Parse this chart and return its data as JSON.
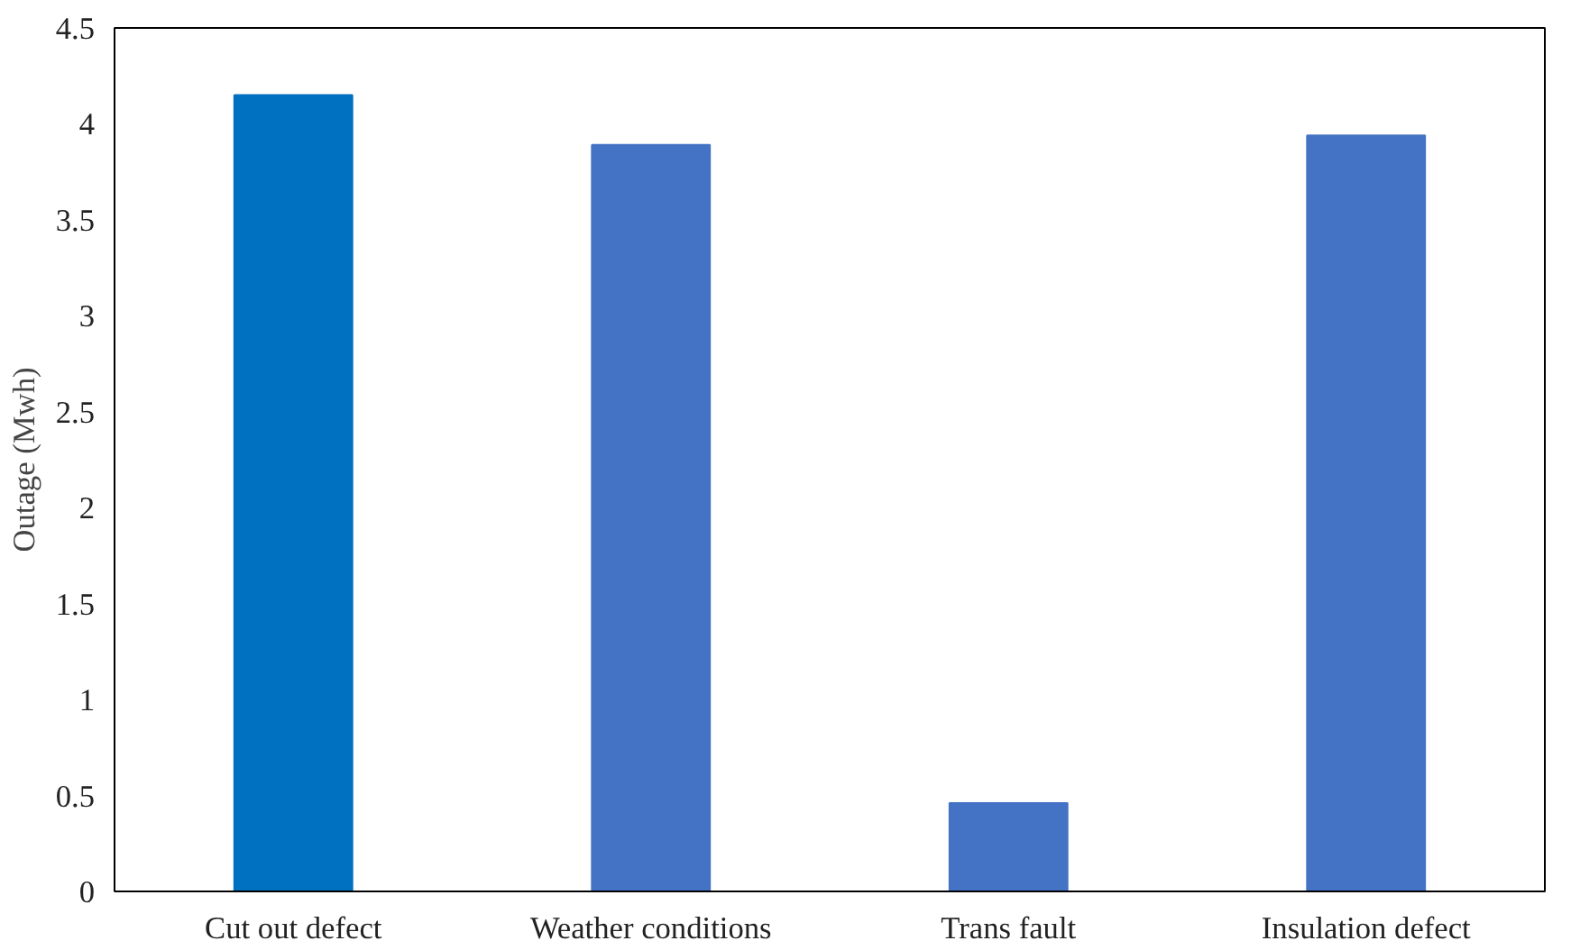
{
  "chart_data": {
    "type": "bar",
    "ylabel": "Outage (Mwh)",
    "categories": [
      "Cut out defect",
      "Weather conditions",
      "Trans fault",
      "Insulation defect"
    ],
    "values": [
      4.15,
      3.89,
      0.46,
      3.94
    ],
    "colors": [
      "#0070c0",
      "#4472c4",
      "#4472c4",
      "#4472c4"
    ],
    "ylim": [
      0,
      4.5
    ],
    "yticks": [
      0,
      0.5,
      1,
      1.5,
      2,
      2.5,
      3,
      3.5,
      4,
      4.5
    ],
    "grid": false
  }
}
